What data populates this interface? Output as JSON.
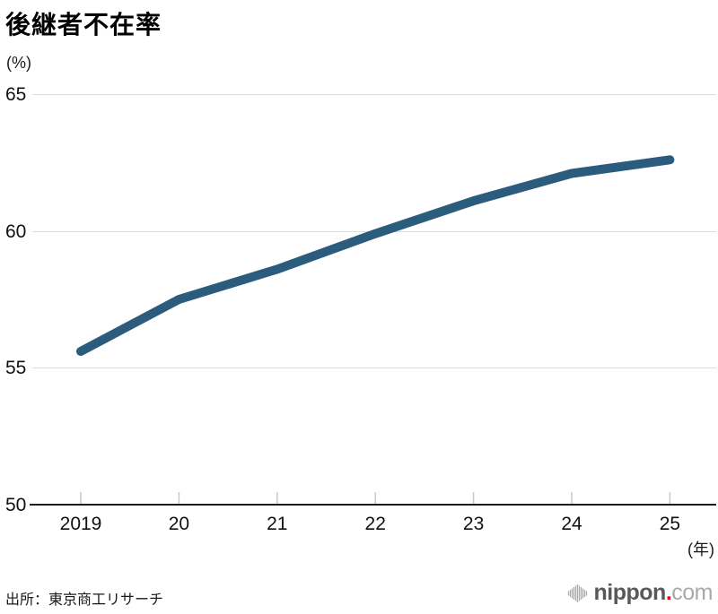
{
  "chart": {
    "title": "後継者不在率",
    "y_unit_label": "(%)",
    "x_unit_label": "(年)"
  },
  "chart_data": {
    "type": "line",
    "title": "後継者不在率",
    "series_name": "後継者不在率",
    "x_tick_labels": [
      "2019",
      "20",
      "21",
      "22",
      "23",
      "24",
      "25"
    ],
    "years": [
      2019,
      2020,
      2021,
      2022,
      2023,
      2024,
      2025
    ],
    "values": [
      55.6,
      57.5,
      58.6,
      59.9,
      61.1,
      62.1,
      62.6
    ],
    "xlabel": "(年)",
    "ylabel": "(%)",
    "ylim": [
      50,
      65
    ],
    "yticks": [
      50,
      55,
      60,
      65
    ],
    "grid": "horizontal-only",
    "legend": "none",
    "line_color": "#2b5c7d"
  },
  "footer": {
    "source": "出所：東京商工リサーチ",
    "logo": {
      "icon": "soundwave-bars-icon",
      "name": "nippon",
      "dot": ".",
      "tld": "com"
    }
  },
  "colors": {
    "line": "#2b5c7d",
    "gridline": "#dcdcdc",
    "axis": "#1c1c1c",
    "tick": "#c9c9c9",
    "text": "#111111",
    "logo_name_gray": "#595959",
    "logo_tld_gray": "#a9a9a9",
    "logo_dot_red": "#e60012",
    "logo_icon_gray": "#a9a9a9"
  }
}
